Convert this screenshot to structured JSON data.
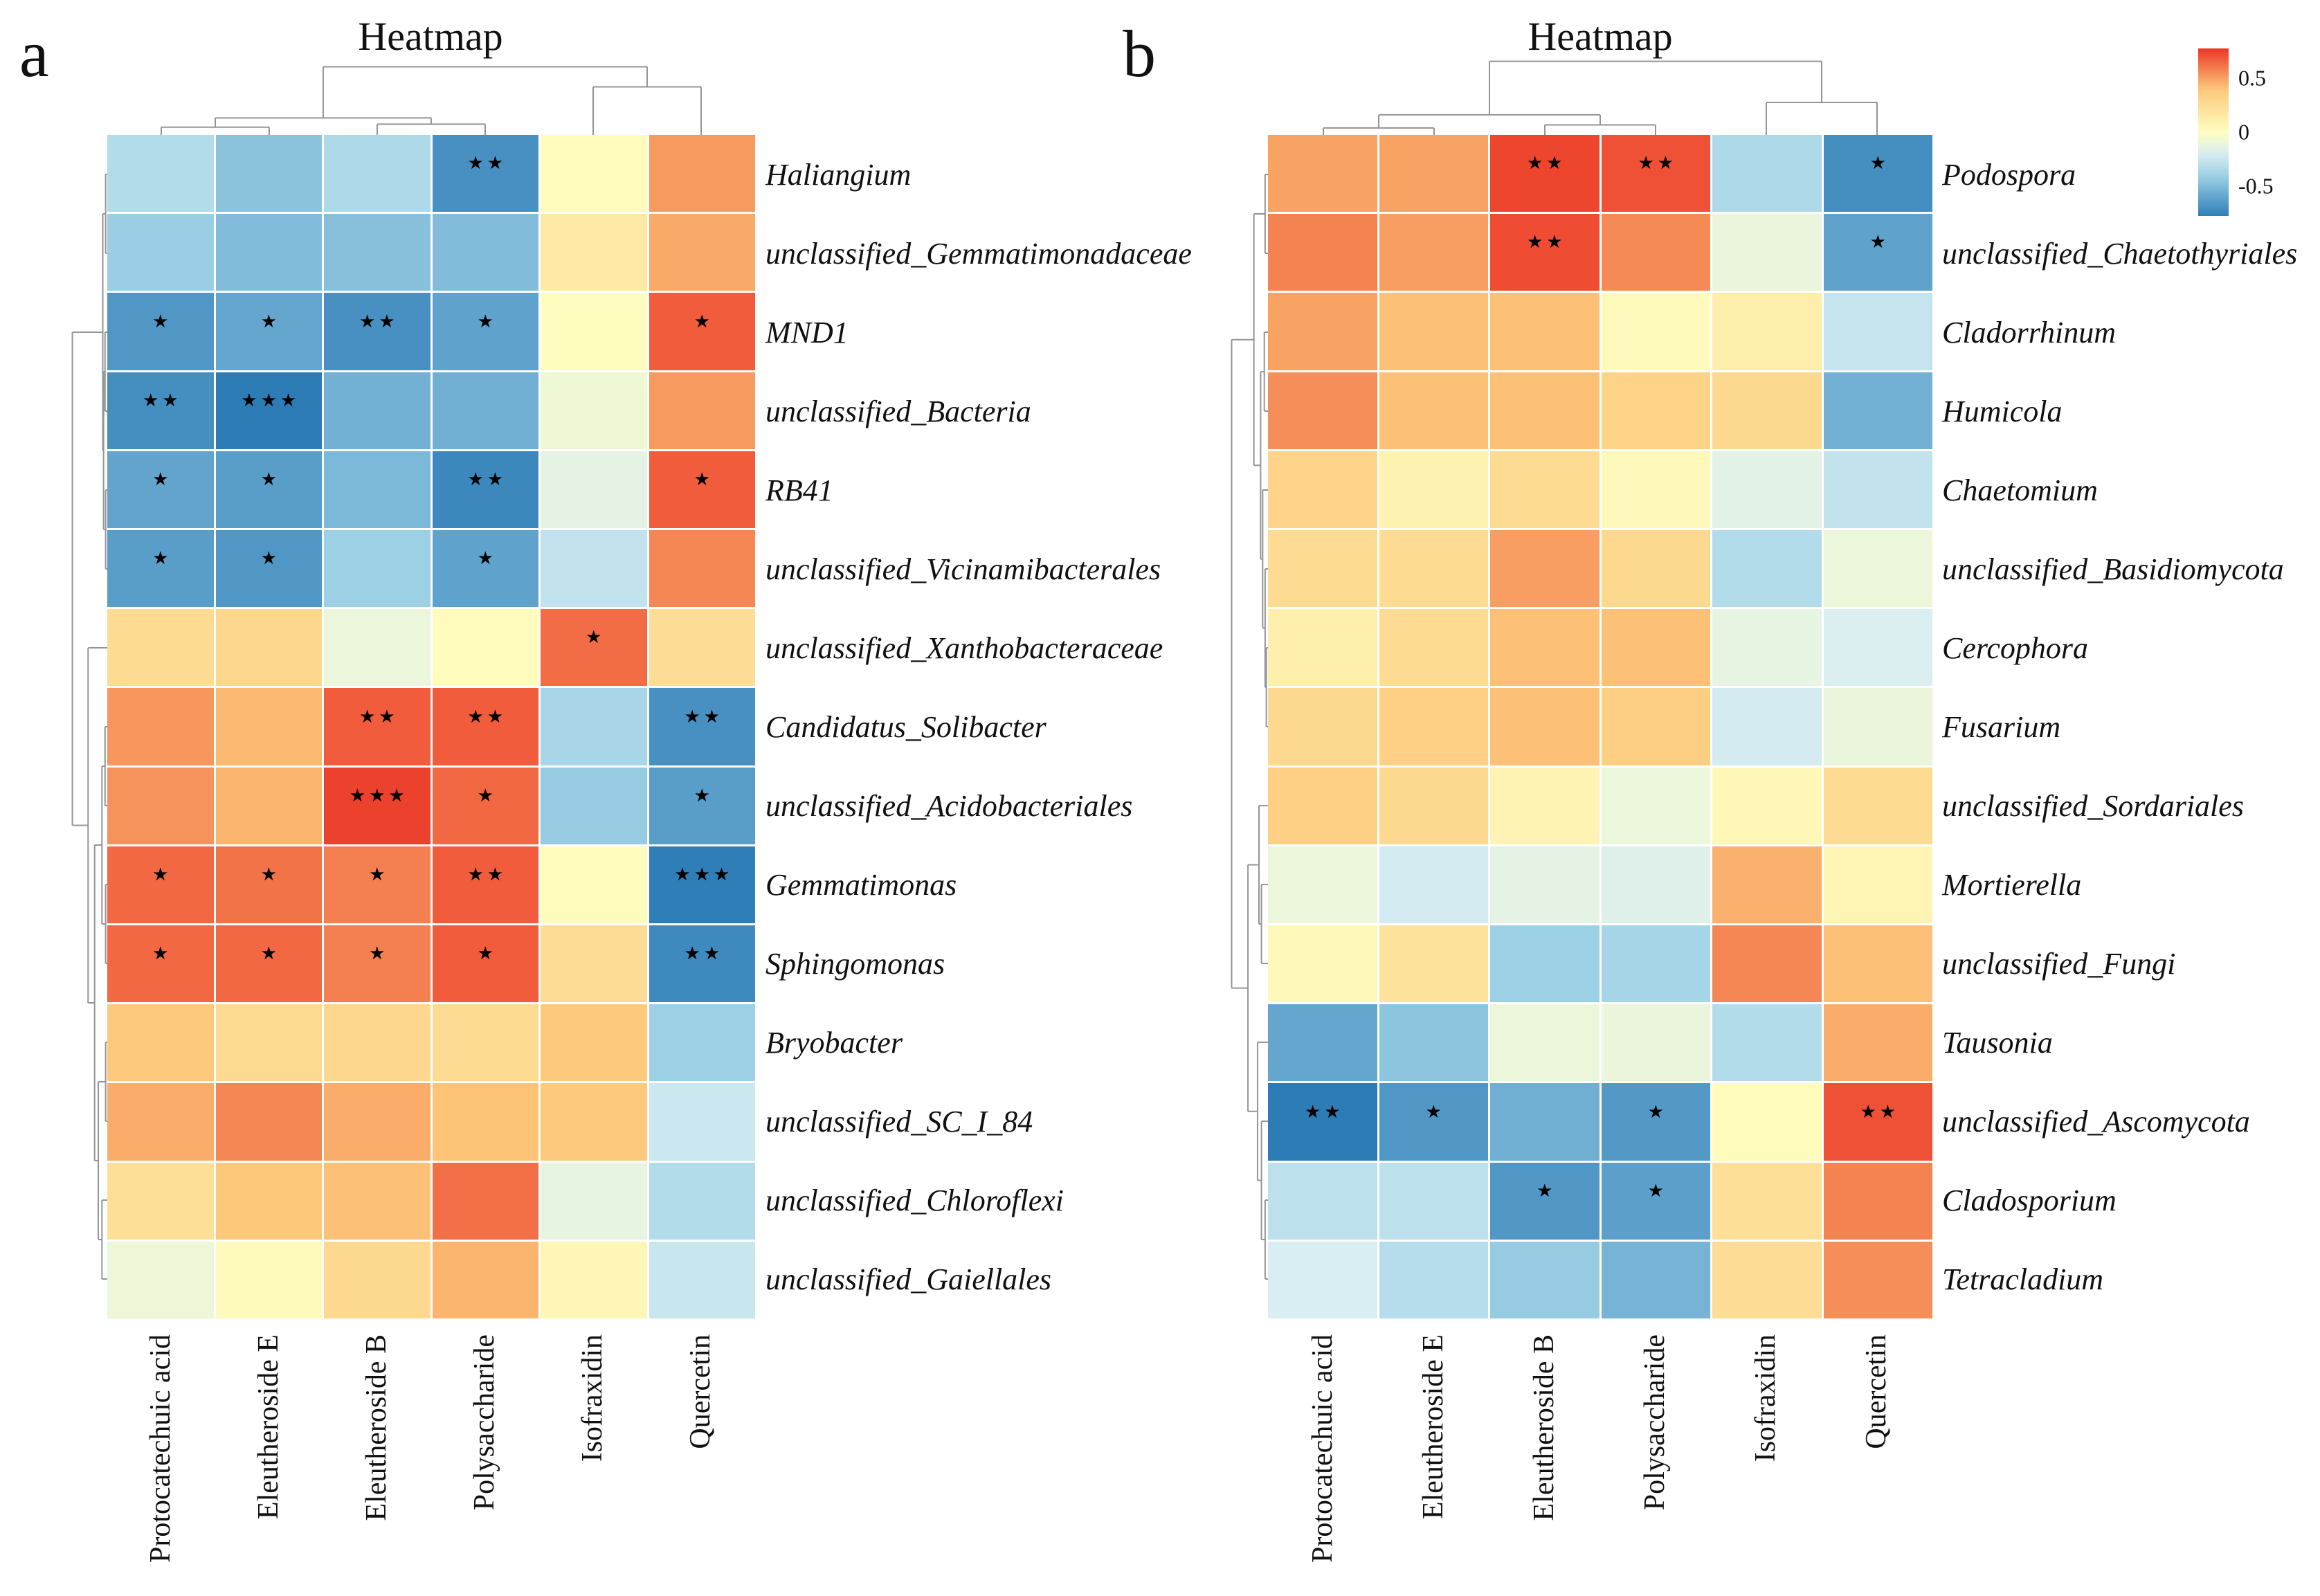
{
  "legend": {
    "ticks": [
      "0.5",
      "0",
      "-0.5"
    ]
  },
  "colormap": {
    "domain": [
      -0.8,
      -0.4,
      -0.2,
      0,
      0.4,
      0.8
    ],
    "colors": [
      "#2a7ab5",
      "#9fd2e6",
      "#d9eef2",
      "#fefec1",
      "#fdc87a",
      "#ea2e21"
    ],
    "bar_range": [
      0.78,
      -0.78
    ]
  },
  "chart_data": [
    {
      "type": "heatmap",
      "panel": "a",
      "title": "Heatmap",
      "categories": [
        "Protocatechuic acid",
        "Eleutheroside E",
        "Eleutheroside B",
        "Polysaccharide",
        "Isofraxidin",
        "Quercetin"
      ],
      "rows": [
        "Haliangium",
        "unclassified_Gemmatimonadaceae",
        "MND1",
        "unclassified_Bacteria",
        "RB41",
        "unclassified_Vicinamibacterales",
        "unclassified_Xanthobacteraceae",
        "Candidatus_Solibacter",
        "unclassified_Acidobacteriales",
        "Gemmatimonas",
        "Sphingomonas",
        "Bryobacter",
        "unclassified_SC_I_84",
        "unclassified_Chloroflexi",
        "unclassified_Gaiellales"
      ],
      "values": [
        [
          -0.33,
          -0.47,
          -0.35,
          -0.7,
          0.02,
          0.52
        ],
        [
          -0.42,
          -0.5,
          -0.48,
          -0.5,
          0.15,
          0.48
        ],
        [
          -0.67,
          -0.6,
          -0.7,
          -0.62,
          0.01,
          0.68
        ],
        [
          -0.71,
          -0.79,
          -0.55,
          -0.56,
          -0.08,
          0.52
        ],
        [
          -0.61,
          -0.64,
          -0.52,
          -0.74,
          -0.14,
          0.68
        ],
        [
          -0.64,
          -0.67,
          -0.41,
          -0.62,
          -0.28,
          0.57
        ],
        [
          0.26,
          0.29,
          -0.1,
          0.02,
          0.64,
          0.25
        ],
        [
          0.53,
          0.44,
          0.68,
          0.68,
          -0.37,
          -0.7
        ],
        [
          0.54,
          0.45,
          0.75,
          0.65,
          -0.43,
          -0.64
        ],
        [
          0.65,
          0.62,
          0.59,
          0.68,
          0.02,
          -0.78
        ],
        [
          0.65,
          0.65,
          0.59,
          0.68,
          0.25,
          -0.73
        ],
        [
          0.39,
          0.27,
          0.29,
          0.26,
          0.39,
          -0.41
        ],
        [
          0.47,
          0.57,
          0.47,
          0.41,
          0.39,
          -0.25
        ],
        [
          0.23,
          0.4,
          0.42,
          0.63,
          -0.13,
          -0.33
        ],
        [
          -0.09,
          0.03,
          0.28,
          0.45,
          0.06,
          -0.26
        ]
      ],
      "sig": [
        [
          "",
          "",
          "",
          "**",
          "",
          ""
        ],
        [
          "",
          "",
          "",
          "",
          "",
          ""
        ],
        [
          "*",
          "*",
          "**",
          "*",
          "",
          "*"
        ],
        [
          "**",
          "***",
          "",
          "",
          "",
          ""
        ],
        [
          "*",
          "*",
          "",
          "**",
          "",
          "*"
        ],
        [
          "*",
          "*",
          "",
          "*",
          "",
          ""
        ],
        [
          "",
          "",
          "",
          "",
          "*",
          ""
        ],
        [
          "",
          "",
          "**",
          "**",
          "",
          "**"
        ],
        [
          "",
          "",
          "***",
          "*",
          "",
          "*"
        ],
        [
          "*",
          "*",
          "*",
          "**",
          "",
          "***"
        ],
        [
          "*",
          "*",
          "*",
          "*",
          "",
          "**"
        ],
        [
          "",
          "",
          "",
          "",
          "",
          ""
        ],
        [
          "",
          "",
          "",
          "",
          "",
          ""
        ],
        [
          "",
          "",
          "",
          "",
          "",
          ""
        ],
        [
          "",
          "",
          "",
          "",
          "",
          ""
        ]
      ],
      "col_tree": {
        "h": 0.88,
        "c": [
          {
            "h": 0.22,
            "c": [
              {
                "h": 0.1,
                "c": [
                  0,
                  1
                ]
              },
              {
                "h": 0.14,
                "c": [
                  2,
                  3
                ]
              }
            ]
          },
          {
            "h": 0.62,
            "c": [
              4,
              5
            ]
          }
        ]
      },
      "row_tree": {
        "h": 0.855,
        "c": [
          {
            "h": 0.11,
            "c": [
              {
                "h": 0.04,
                "c": [
                  0,
                  1
                ]
              },
              {
                "h": 0.09,
                "c": [
                  {
                    "h": 0.055,
                    "c": [
                      2,
                      3
                    ]
                  },
                  {
                    "h": 0.04,
                    "c": [
                      4,
                      5
                    ]
                  }
                ]
              }
            ]
          },
          {
            "h": 0.47,
            "c": [
              6,
              {
                "h": 0.31,
                "c": [
                  {
                    "h": 0.13,
                    "c": [
                      {
                        "h": 0.055,
                        "c": [
                          7,
                          8
                        ]
                      },
                      {
                        "h": 0.04,
                        "c": [
                          9,
                          10
                        ]
                      }
                    ]
                  },
                  {
                    "h": 0.22,
                    "c": [
                      {
                        "h": 0.04,
                        "c": [
                          11,
                          12
                        ]
                      },
                      {
                        "h": 0.13,
                        "c": [
                          13,
                          14
                        ]
                      }
                    ]
                  }
                ]
              }
            ]
          }
        ]
      }
    },
    {
      "type": "heatmap",
      "panel": "b",
      "title": "Heatmap",
      "categories": [
        "Protocatechuic acid",
        "Eleutheroside E",
        "Eleutheroside B",
        "Polysaccharide",
        "Isofraxidin",
        "Quercetin"
      ],
      "rows": [
        "Podospora",
        "unclassified_Chaetothyriales",
        "Cladorrhinum",
        "Humicola",
        "Chaetomium",
        "unclassified_Basidiomycota",
        "Cercophora",
        "Fusarium",
        "unclassified_Sordariales",
        "Mortierella",
        "unclassified_Fungi",
        "Tausonia",
        "unclassified_Ascomycota",
        "Cladosporium",
        "Tetracladium"
      ],
      "values": [
        [
          0.5,
          0.5,
          0.74,
          0.71,
          -0.35,
          -0.71
        ],
        [
          0.58,
          0.51,
          0.72,
          0.56,
          -0.11,
          -0.62
        ],
        [
          0.5,
          0.42,
          0.42,
          0.03,
          0.12,
          -0.27
        ],
        [
          0.55,
          0.42,
          0.42,
          0.32,
          0.28,
          -0.55
        ],
        [
          0.31,
          0.09,
          0.26,
          0.04,
          -0.15,
          -0.28
        ],
        [
          0.26,
          0.26,
          0.51,
          0.28,
          -0.33,
          -0.1
        ],
        [
          0.11,
          0.26,
          0.42,
          0.42,
          -0.13,
          -0.19
        ],
        [
          0.28,
          0.34,
          0.42,
          0.35,
          -0.22,
          -0.11
        ],
        [
          0.34,
          0.28,
          0.08,
          -0.1,
          0.05,
          0.26
        ],
        [
          -0.1,
          -0.22,
          -0.14,
          -0.17,
          0.46,
          0.07
        ],
        [
          0.04,
          0.21,
          -0.41,
          -0.38,
          0.57,
          0.42
        ],
        [
          -0.6,
          -0.46,
          -0.1,
          -0.11,
          -0.33,
          0.47
        ],
        [
          -0.79,
          -0.67,
          -0.56,
          -0.66,
          0.02,
          0.71
        ],
        [
          -0.3,
          -0.3,
          -0.67,
          -0.63,
          0.23,
          0.58
        ],
        [
          -0.2,
          -0.32,
          -0.43,
          -0.54,
          0.25,
          0.55
        ]
      ],
      "sig": [
        [
          "",
          "",
          "**",
          "**",
          "",
          "*"
        ],
        [
          "",
          "",
          "**",
          "",
          "",
          "*"
        ],
        [
          "",
          "",
          "",
          "",
          "",
          ""
        ],
        [
          "",
          "",
          "",
          "",
          "",
          ""
        ],
        [
          "",
          "",
          "",
          "",
          "",
          ""
        ],
        [
          "",
          "",
          "",
          "",
          "",
          ""
        ],
        [
          "",
          "",
          "",
          "",
          "",
          ""
        ],
        [
          "",
          "",
          "",
          "",
          "",
          ""
        ],
        [
          "",
          "",
          "",
          "",
          "",
          ""
        ],
        [
          "",
          "",
          "",
          "",
          "",
          ""
        ],
        [
          "",
          "",
          "",
          "",
          "",
          ""
        ],
        [
          "",
          "",
          "",
          "",
          "",
          ""
        ],
        [
          "**",
          "*",
          "",
          "*",
          "",
          "**"
        ],
        [
          "",
          "",
          "*",
          "*",
          "",
          ""
        ],
        [
          "",
          "",
          "",
          "",
          "",
          ""
        ]
      ],
      "col_tree": {
        "h": 0.95,
        "c": [
          {
            "h": 0.26,
            "c": [
              {
                "h": 0.09,
                "c": [
                  0,
                  1
                ]
              },
              {
                "h": 0.13,
                "c": [
                  2,
                  3
                ]
              }
            ]
          },
          {
            "h": 0.42,
            "c": [
              4,
              5
            ]
          }
        ]
      },
      "row_tree": {
        "h": 0.89,
        "c": [
          {
            "h": 0.345,
            "c": [
              {
                "h": 0.07,
                "c": [
                  0,
                  1
                ]
              },
              {
                "h": 0.18,
                "c": [
                  {
                    "h": 0.09,
                    "c": [
                      2,
                      3
                    ]
                  },
                  {
                    "h": 0.13,
                    "c": [
                      4,
                      {
                        "h": 0.07,
                        "c": [
                          5,
                          {
                            "h": 0.04,
                            "c": [
                              6,
                              7
                            ]
                          }
                        ]
                      }
                    ]
                  }
                ]
              }
            ]
          },
          {
            "h": 0.49,
            "c": [
              {
                "h": 0.22,
                "c": [
                  8,
                  {
                    "h": 0.16,
                    "c": [
                      9,
                      10
                    ]
                  }
                ]
              },
              {
                "h": 0.255,
                "c": [
                  11,
                  {
                    "h": 0.16,
                    "c": [
                      12,
                      {
                        "h": 0.07,
                        "c": [
                          13,
                          14
                        ]
                      }
                    ]
                  }
                ]
              }
            ]
          }
        ]
      }
    }
  ]
}
